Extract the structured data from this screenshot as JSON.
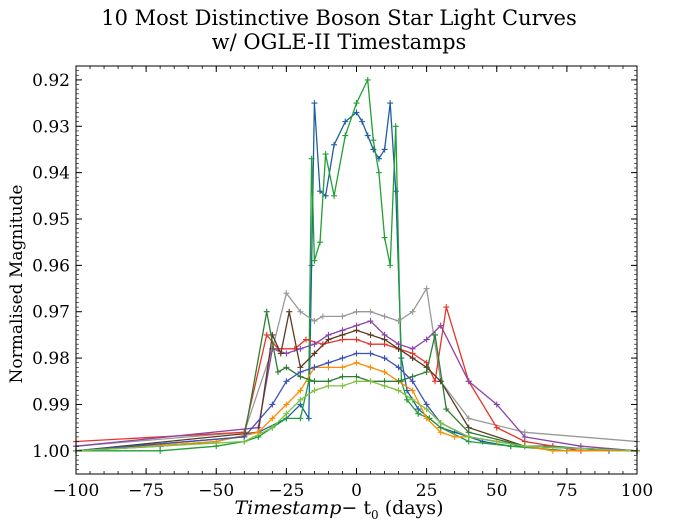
{
  "chart_data": {
    "type": "line",
    "title_line1": "10 Most Distinctive Boson Star Light Curves",
    "title_line2": "w/ OGLE-II Timestamps",
    "xlabel_main": "Timestamp",
    "xlabel_sub": "− t",
    "xlabel_sub0": "0",
    "xlabel_unit": " (days)",
    "ylabel": "Normalised Magnitude",
    "xlim": [
      -100,
      100
    ],
    "ylim": [
      1.005,
      0.917
    ],
    "y_inverted": true,
    "grid": false,
    "legend": "none",
    "x_ticks": [
      -100,
      -75,
      -50,
      -25,
      0,
      25,
      50,
      75,
      100
    ],
    "x_tick_labels": [
      "−100",
      "−75",
      "−50",
      "−25",
      "0",
      "25",
      "50",
      "75",
      "100"
    ],
    "y_ticks": [
      0.92,
      0.93,
      0.94,
      0.95,
      0.96,
      0.97,
      0.98,
      0.99,
      1.0
    ],
    "y_tick_labels": [
      "0.92",
      "0.93",
      "0.94",
      "0.95",
      "0.96",
      "0.97",
      "0.98",
      "0.99",
      "1.00"
    ],
    "marker": "+",
    "series": [
      {
        "color": "#1f5fa0",
        "x": [
          -100,
          -70,
          -50,
          -35,
          -25,
          -20,
          -17,
          -16,
          -15,
          -13,
          -11,
          -8,
          -4,
          0,
          2,
          4,
          6,
          8,
          10,
          12,
          14,
          16,
          18,
          22,
          26,
          30,
          35,
          40,
          45,
          55,
          70,
          90,
          100
        ],
        "y": [
          1.0,
          0.999,
          0.998,
          0.996,
          0.993,
          0.99,
          0.993,
          0.96,
          0.925,
          0.944,
          0.945,
          0.934,
          0.929,
          0.927,
          0.929,
          0.932,
          0.935,
          0.937,
          0.935,
          0.925,
          0.944,
          0.98,
          0.987,
          0.991,
          0.993,
          0.995,
          0.996,
          0.997,
          0.998,
          0.999,
          0.999,
          1.0,
          1.0
        ]
      },
      {
        "color": "#1fa033",
        "x": [
          -100,
          -70,
          -50,
          -40,
          -35,
          -30,
          -25,
          -20,
          -17,
          -16,
          -15,
          -13,
          -11,
          -8,
          -4,
          0,
          4,
          6,
          8,
          10,
          12,
          14,
          16,
          18,
          22,
          26,
          30,
          40,
          55,
          75,
          100
        ],
        "y": [
          1.0,
          1.0,
          0.999,
          0.998,
          0.997,
          0.995,
          0.993,
          0.993,
          0.985,
          0.937,
          0.959,
          0.955,
          0.936,
          0.945,
          0.932,
          0.925,
          0.92,
          0.933,
          0.94,
          0.954,
          0.96,
          0.93,
          0.985,
          0.989,
          0.992,
          0.993,
          0.995,
          0.998,
          0.999,
          1.0,
          1.0
        ]
      },
      {
        "color": "#999999",
        "x": [
          -100,
          -40,
          -30,
          -25,
          -20,
          -15,
          -12,
          -5,
          0,
          5,
          10,
          15,
          20,
          25,
          30,
          40,
          60,
          100
        ],
        "y": [
          0.999,
          0.996,
          0.978,
          0.966,
          0.97,
          0.972,
          0.971,
          0.971,
          0.97,
          0.97,
          0.971,
          0.972,
          0.97,
          0.965,
          0.985,
          0.993,
          0.996,
          0.998
        ]
      },
      {
        "color": "#e8342a",
        "x": [
          -100,
          -40,
          -32,
          -28,
          -22,
          -18,
          -12,
          -5,
          0,
          5,
          10,
          15,
          20,
          25,
          28,
          32,
          40,
          50,
          60,
          80,
          100
        ],
        "y": [
          0.998,
          0.996,
          0.975,
          0.978,
          0.978,
          0.976,
          0.977,
          0.976,
          0.976,
          0.977,
          0.977,
          0.978,
          0.979,
          0.981,
          0.985,
          0.969,
          0.985,
          0.995,
          0.998,
          1.0,
          1.0
        ]
      },
      {
        "color": "#8b44a8",
        "x": [
          -100,
          -35,
          -30,
          -25,
          -20,
          -15,
          -10,
          -5,
          0,
          5,
          10,
          15,
          20,
          25,
          30,
          40,
          50,
          60,
          80,
          100
        ],
        "y": [
          0.999,
          0.995,
          0.978,
          0.979,
          0.978,
          0.977,
          0.975,
          0.974,
          0.973,
          0.972,
          0.975,
          0.977,
          0.978,
          0.976,
          0.973,
          0.985,
          0.99,
          0.997,
          0.999,
          1.0
        ]
      },
      {
        "color": "#5a3a22",
        "x": [
          -100,
          -35,
          -30,
          -27,
          -24,
          -20,
          -15,
          -10,
          -5,
          0,
          5,
          10,
          15,
          20,
          25,
          30,
          40,
          60,
          100
        ],
        "y": [
          1.0,
          0.996,
          0.975,
          0.979,
          0.97,
          0.982,
          0.979,
          0.976,
          0.975,
          0.974,
          0.975,
          0.976,
          0.978,
          0.98,
          0.982,
          0.985,
          0.995,
          0.999,
          1.0
        ]
      },
      {
        "color": "#ff8c00",
        "x": [
          -100,
          -50,
          -35,
          -30,
          -25,
          -20,
          -15,
          -10,
          -5,
          0,
          5,
          10,
          15,
          20,
          25,
          30,
          35,
          40,
          50,
          70,
          100
        ],
        "y": [
          1.0,
          0.998,
          0.996,
          0.993,
          0.99,
          0.987,
          0.982,
          0.982,
          0.982,
          0.981,
          0.982,
          0.983,
          0.985,
          0.987,
          0.993,
          0.996,
          0.997,
          0.997,
          0.998,
          1.0,
          1.0
        ]
      },
      {
        "color": "#2e7d32",
        "x": [
          -100,
          -40,
          -32,
          -28,
          -25,
          -20,
          -15,
          -10,
          -5,
          0,
          5,
          10,
          15,
          20,
          25,
          28,
          32,
          40,
          60,
          100
        ],
        "y": [
          1.0,
          0.997,
          0.97,
          0.983,
          0.982,
          0.984,
          0.985,
          0.985,
          0.984,
          0.984,
          0.985,
          0.985,
          0.985,
          0.984,
          0.983,
          0.975,
          0.991,
          0.996,
          0.999,
          1.0
        ]
      },
      {
        "color": "#3f51b5",
        "x": [
          -100,
          -40,
          -30,
          -25,
          -20,
          -15,
          -10,
          -5,
          0,
          5,
          10,
          15,
          20,
          25,
          30,
          40,
          60,
          100
        ],
        "y": [
          1.0,
          0.997,
          0.99,
          0.985,
          0.983,
          0.982,
          0.981,
          0.98,
          0.979,
          0.979,
          0.98,
          0.982,
          0.985,
          0.99,
          0.994,
          0.997,
          0.999,
          1.0
        ]
      },
      {
        "color": "#7cc242",
        "x": [
          -100,
          -40,
          -30,
          -25,
          -20,
          -15,
          -10,
          -5,
          0,
          5,
          10,
          15,
          20,
          25,
          30,
          40,
          60,
          100
        ],
        "y": [
          1.0,
          0.998,
          0.995,
          0.992,
          0.989,
          0.987,
          0.986,
          0.986,
          0.985,
          0.985,
          0.986,
          0.987,
          0.989,
          0.991,
          0.994,
          0.997,
          0.999,
          1.0
        ]
      }
    ]
  }
}
